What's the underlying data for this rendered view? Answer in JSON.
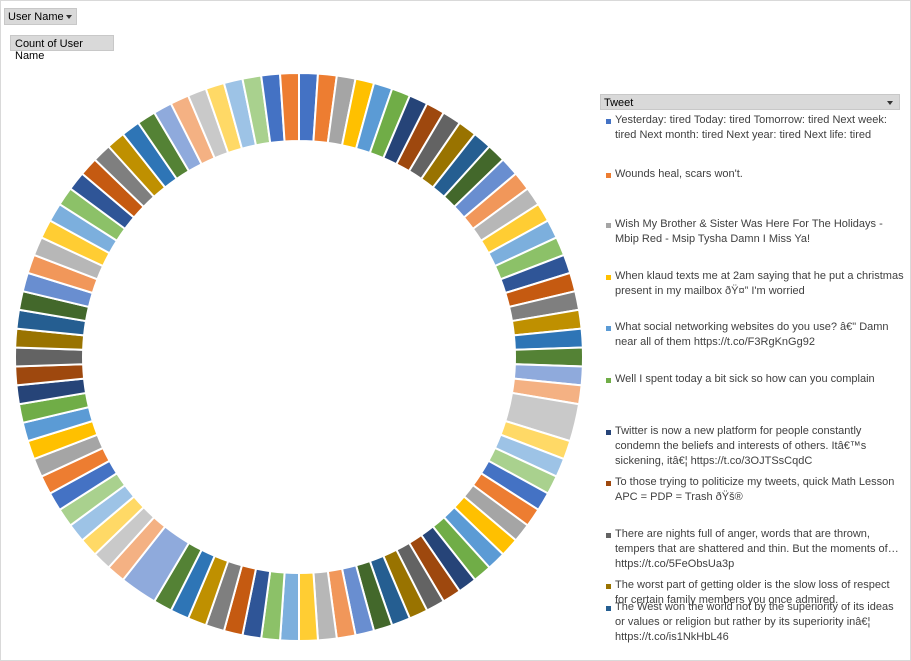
{
  "filter_button": {
    "label": "User Name"
  },
  "value_button": {
    "label": "Count of User Name"
  },
  "legend_header": {
    "label": "Tweet"
  },
  "palette": [
    "#4472c4",
    "#ed7d31",
    "#a5a5a5",
    "#ffc000",
    "#5b9bd5",
    "#70ad47",
    "#264478",
    "#9e480e",
    "#636363",
    "#997300",
    "#255e91",
    "#43682b",
    "#698ed0",
    "#f1975a",
    "#b7b7b7",
    "#ffcd33",
    "#7cafdd",
    "#8cc168",
    "#2f5597",
    "#c55a11",
    "#7f7f7f",
    "#bf9000",
    "#2e75b6",
    "#548235",
    "#8faadc",
    "#f4b183",
    "#c9c9c9",
    "#ffd966",
    "#9dc3e6",
    "#a9d18e"
  ],
  "chart_data": {
    "type": "doughnut",
    "title": "",
    "legend_position": "right",
    "big_slice_index": 26,
    "values": [
      1,
      1,
      1,
      1,
      1,
      1,
      1,
      1,
      1,
      1,
      1,
      1,
      1,
      1,
      1,
      1,
      1,
      1,
      1,
      1,
      1,
      1,
      1,
      1,
      1,
      1,
      2,
      1,
      1,
      1,
      1,
      1,
      1,
      1,
      1,
      1,
      1,
      1,
      1,
      1,
      1,
      1,
      1,
      1,
      1,
      1,
      1,
      1,
      1,
      1,
      1,
      1,
      1,
      1,
      2,
      1,
      1,
      1,
      1,
      1,
      1,
      1,
      1,
      1,
      1,
      1,
      1,
      1,
      1,
      1,
      1,
      1,
      1,
      1,
      1,
      1,
      1,
      1,
      1,
      1,
      1,
      1,
      1,
      1,
      1,
      1,
      1,
      1,
      1,
      1,
      1,
      1
    ],
    "legend": [
      "Yesterday: tired Today: tired Tomorrow: tired Next week: tired Next month: tired Next year: tired Next life: tired",
      "Wounds heal, scars won't.",
      "Wish My Brother & Sister Was Here For The Holidays - Mbip Red - Msip Tysha Damn I Miss Ya!",
      "When klaud texts me at 2am saying that he put a christmas present in my mailbox ðŸ¤” I'm worried",
      "What social networking websites do you use? â€\" Damn near all of them https://t.co/F3RgKnGg92",
      "Well I spent today a bit sick so how can you complain",
      "Twitter is now a new platform for people constantly condemn the beliefs and interests of others. Itâ€™s sickening, itâ€¦ https://t.co/3OJTSsCqdC",
      "To those trying to politicize my tweets, quick Math Lesson APC = PDP = Trash ðŸš®",
      "There are nights full of anger, words that are thrown, tempers that are shattered and thin. But the moments of… https://t.co/5FeObsUa3p",
      "The worst part of getting older is the slow loss of respect for certain family members you once admired.",
      "The West won the world not by the superiority of its ideas or values or religion but rather by its superiority inâ€¦ https://t.co/is1NkHbL46"
    ]
  }
}
